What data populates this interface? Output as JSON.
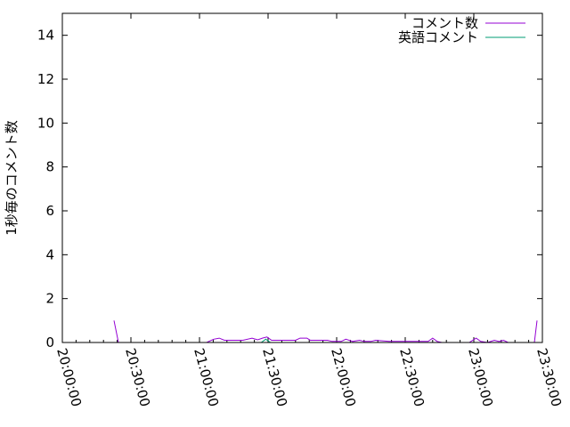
{
  "chart_data": {
    "type": "line",
    "title": "",
    "xlabel": "",
    "ylabel": "1秒毎のコメント数",
    "xlim": [
      "20:00:00",
      "23:30:00"
    ],
    "ylim": [
      0,
      15
    ],
    "x_ticks": [
      "20:00:00",
      "20:30:00",
      "21:00:00",
      "21:30:00",
      "22:00:00",
      "22:30:00",
      "23:00:00",
      "23:30:00"
    ],
    "y_ticks": [
      0,
      2,
      4,
      6,
      8,
      10,
      12,
      14
    ],
    "grid": false,
    "legend_position": "top-right",
    "series": [
      {
        "name": "コメント数",
        "color": "#9400d3",
        "points": [
          [
            "20:22:36",
            1.0
          ],
          [
            "20:24:33",
            0
          ],
          [
            "20:55:05",
            0
          ],
          [
            "20:56:45",
            0
          ],
          [
            "21:03:07",
            0
          ],
          [
            "21:06:14",
            0.15
          ],
          [
            "21:08:40",
            0.2
          ],
          [
            "21:10:55",
            0.1
          ],
          [
            "21:16:00",
            0.1
          ],
          [
            "21:19:00",
            0.1
          ],
          [
            "21:23:00",
            0.2
          ],
          [
            "21:25:30",
            0.12
          ],
          [
            "21:27:30",
            0.2
          ],
          [
            "21:29:30",
            0.25
          ],
          [
            "21:31:30",
            0.1
          ],
          [
            "21:36:00",
            0.1
          ],
          [
            "21:42:00",
            0.1
          ],
          [
            "21:44:00",
            0.2
          ],
          [
            "21:47:00",
            0.2
          ],
          [
            "21:48:30",
            0.1
          ],
          [
            "21:56:00",
            0.1
          ],
          [
            "21:58:00",
            0.05
          ],
          [
            "22:02:00",
            0.05
          ],
          [
            "22:04:00",
            0.15
          ],
          [
            "22:07:00",
            0.05
          ],
          [
            "22:10:00",
            0.1
          ],
          [
            "22:12:00",
            0.05
          ],
          [
            "22:15:00",
            0.05
          ],
          [
            "22:17:00",
            0.1
          ],
          [
            "22:23:00",
            0.05
          ],
          [
            "22:33:00",
            0.05
          ],
          [
            "22:38:00",
            0.05
          ],
          [
            "22:40:00",
            0.05
          ],
          [
            "22:42:00",
            0.2
          ],
          [
            "22:44:00",
            0.05
          ],
          [
            "22:46:00",
            0
          ],
          [
            "22:51:00",
            0
          ],
          [
            "22:58:00",
            0
          ],
          [
            "23:01:00",
            0.2
          ],
          [
            "23:03:00",
            0.05
          ],
          [
            "23:06:00",
            0
          ],
          [
            "23:09:00",
            0.1
          ],
          [
            "23:11:00",
            0.05
          ],
          [
            "23:13:00",
            0.1
          ],
          [
            "23:15:00",
            0
          ],
          [
            "23:26:30",
            0
          ],
          [
            "23:27:40",
            1.0
          ]
        ]
      },
      {
        "name": "英語コメント",
        "color": "#009e73",
        "points": [
          [
            "21:04:00",
            0
          ],
          [
            "21:08:00",
            0
          ],
          [
            "21:27:00",
            0
          ],
          [
            "21:29:00",
            0.15
          ],
          [
            "21:31:00",
            0
          ],
          [
            "21:35:00",
            0
          ],
          [
            "21:38:00",
            0
          ],
          [
            "21:42:00",
            0
          ],
          [
            "21:46:00",
            0
          ],
          [
            "21:48:00",
            0
          ],
          [
            "21:58:00",
            0
          ],
          [
            "22:02:00",
            0
          ]
        ]
      }
    ]
  }
}
